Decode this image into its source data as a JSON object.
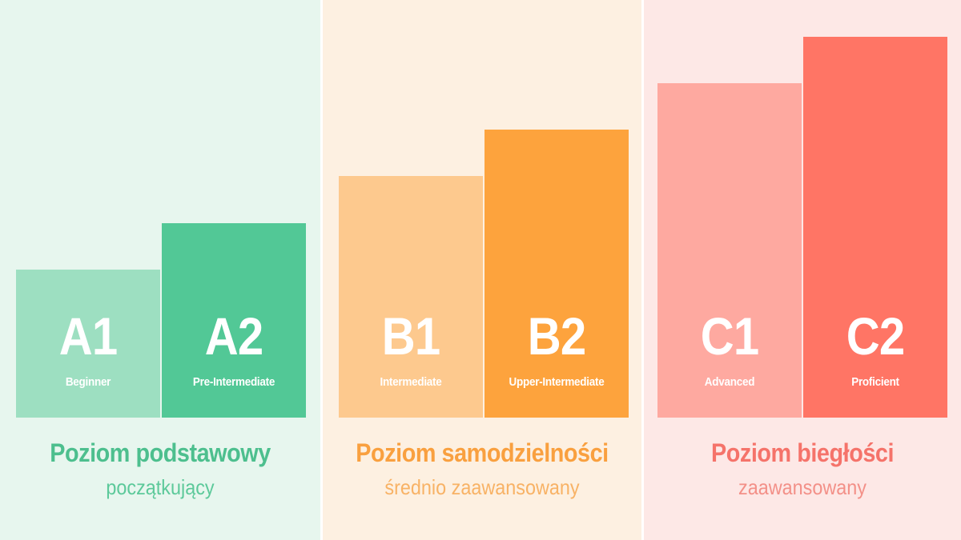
{
  "groups": [
    {
      "title": "Poziom podstawowy",
      "subtitle": "początkujący",
      "colors": {
        "background": "#e7f6ee",
        "light": "#9ddfc1",
        "dark": "#52c896",
        "text": "#4dbf8e",
        "subtext": "#5cc99a"
      },
      "levels": [
        {
          "code": "A1",
          "name": "Beginner",
          "rank": 1
        },
        {
          "code": "A2",
          "name": "Pre-Intermediate",
          "rank": 2
        }
      ]
    },
    {
      "title": "Poziom samodzielności",
      "subtitle": "średnio zaawansowany",
      "colors": {
        "background": "#fdf0e1",
        "light": "#fdc98e",
        "dark": "#fda33d",
        "text": "#f9a03f",
        "subtext": "#f8b265"
      },
      "levels": [
        {
          "code": "B1",
          "name": "Intermediate",
          "rank": 3
        },
        {
          "code": "B2",
          "name": "Upper-Intermediate",
          "rank": 4
        }
      ]
    },
    {
      "title": "Poziom biegłości",
      "subtitle": "zaawansowany",
      "colors": {
        "background": "#fde8e6",
        "light": "#fea9a0",
        "dark": "#ff7565",
        "text": "#f5736a",
        "subtext": "#f39088"
      },
      "levels": [
        {
          "code": "C1",
          "name": "Advanced",
          "rank": 5
        },
        {
          "code": "C2",
          "name": "Proficient",
          "rank": 6
        }
      ]
    }
  ]
}
